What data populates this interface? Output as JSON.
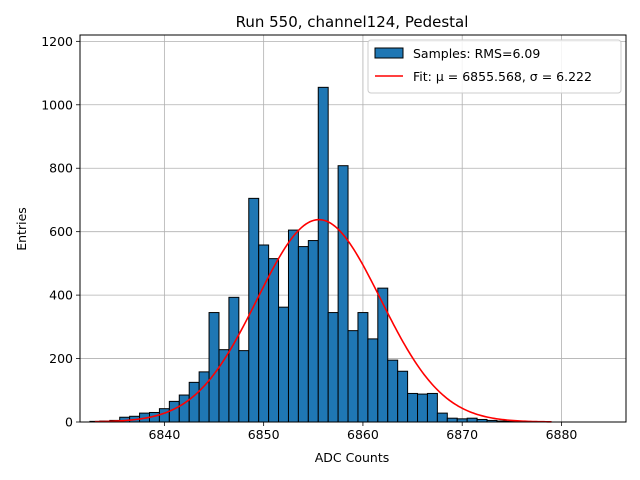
{
  "chart_data": {
    "type": "bar",
    "title": "Run 550, channel124, Pedestal",
    "xlabel": "ADC Counts",
    "ylabel": "Entries",
    "xlim": [
      6831.5,
      6886.5
    ],
    "ylim": [
      0,
      1220
    ],
    "xticks": [
      6840,
      6850,
      6860,
      6870,
      6880
    ],
    "yticks": [
      0,
      200,
      400,
      600,
      800,
      1000,
      1200
    ],
    "grid": true,
    "bin_width": 1,
    "bins": [
      [
        6833,
        2
      ],
      [
        6834,
        3
      ],
      [
        6835,
        5
      ],
      [
        6836,
        15
      ],
      [
        6837,
        18
      ],
      [
        6838,
        28
      ],
      [
        6839,
        30
      ],
      [
        6840,
        42
      ],
      [
        6841,
        65
      ],
      [
        6842,
        85
      ],
      [
        6843,
        125
      ],
      [
        6844,
        158
      ],
      [
        6845,
        345
      ],
      [
        6846,
        228
      ],
      [
        6847,
        393
      ],
      [
        6848,
        225
      ],
      [
        6849,
        705
      ],
      [
        6850,
        558
      ],
      [
        6851,
        515
      ],
      [
        6852,
        362
      ],
      [
        6853,
        605
      ],
      [
        6854,
        553
      ],
      [
        6855,
        572
      ],
      [
        6856,
        1055
      ],
      [
        6857,
        345
      ],
      [
        6858,
        808
      ],
      [
        6859,
        288
      ],
      [
        6860,
        345
      ],
      [
        6861,
        262
      ],
      [
        6862,
        422
      ],
      [
        6863,
        195
      ],
      [
        6864,
        160
      ],
      [
        6865,
        90
      ],
      [
        6866,
        88
      ],
      [
        6867,
        90
      ],
      [
        6868,
        28
      ],
      [
        6869,
        12
      ],
      [
        6870,
        10
      ],
      [
        6871,
        12
      ],
      [
        6872,
        8
      ],
      [
        6873,
        5
      ],
      [
        6874,
        3
      ],
      [
        6875,
        2
      ]
    ],
    "fit": {
      "mu": 6855.568,
      "sigma": 6.222,
      "amplitude": 638,
      "x_range": [
        6833,
        6879
      ]
    },
    "bar_color": "#1f77b4",
    "fit_color": "#ff0000",
    "legend_position": "top-right",
    "legend": [
      {
        "label": "Samples: RMS=6.09",
        "kind": "patch",
        "color": "#1f77b4"
      },
      {
        "label": "Fit: μ = 6855.568, σ = 6.222",
        "kind": "line",
        "color": "#ff0000"
      }
    ]
  }
}
